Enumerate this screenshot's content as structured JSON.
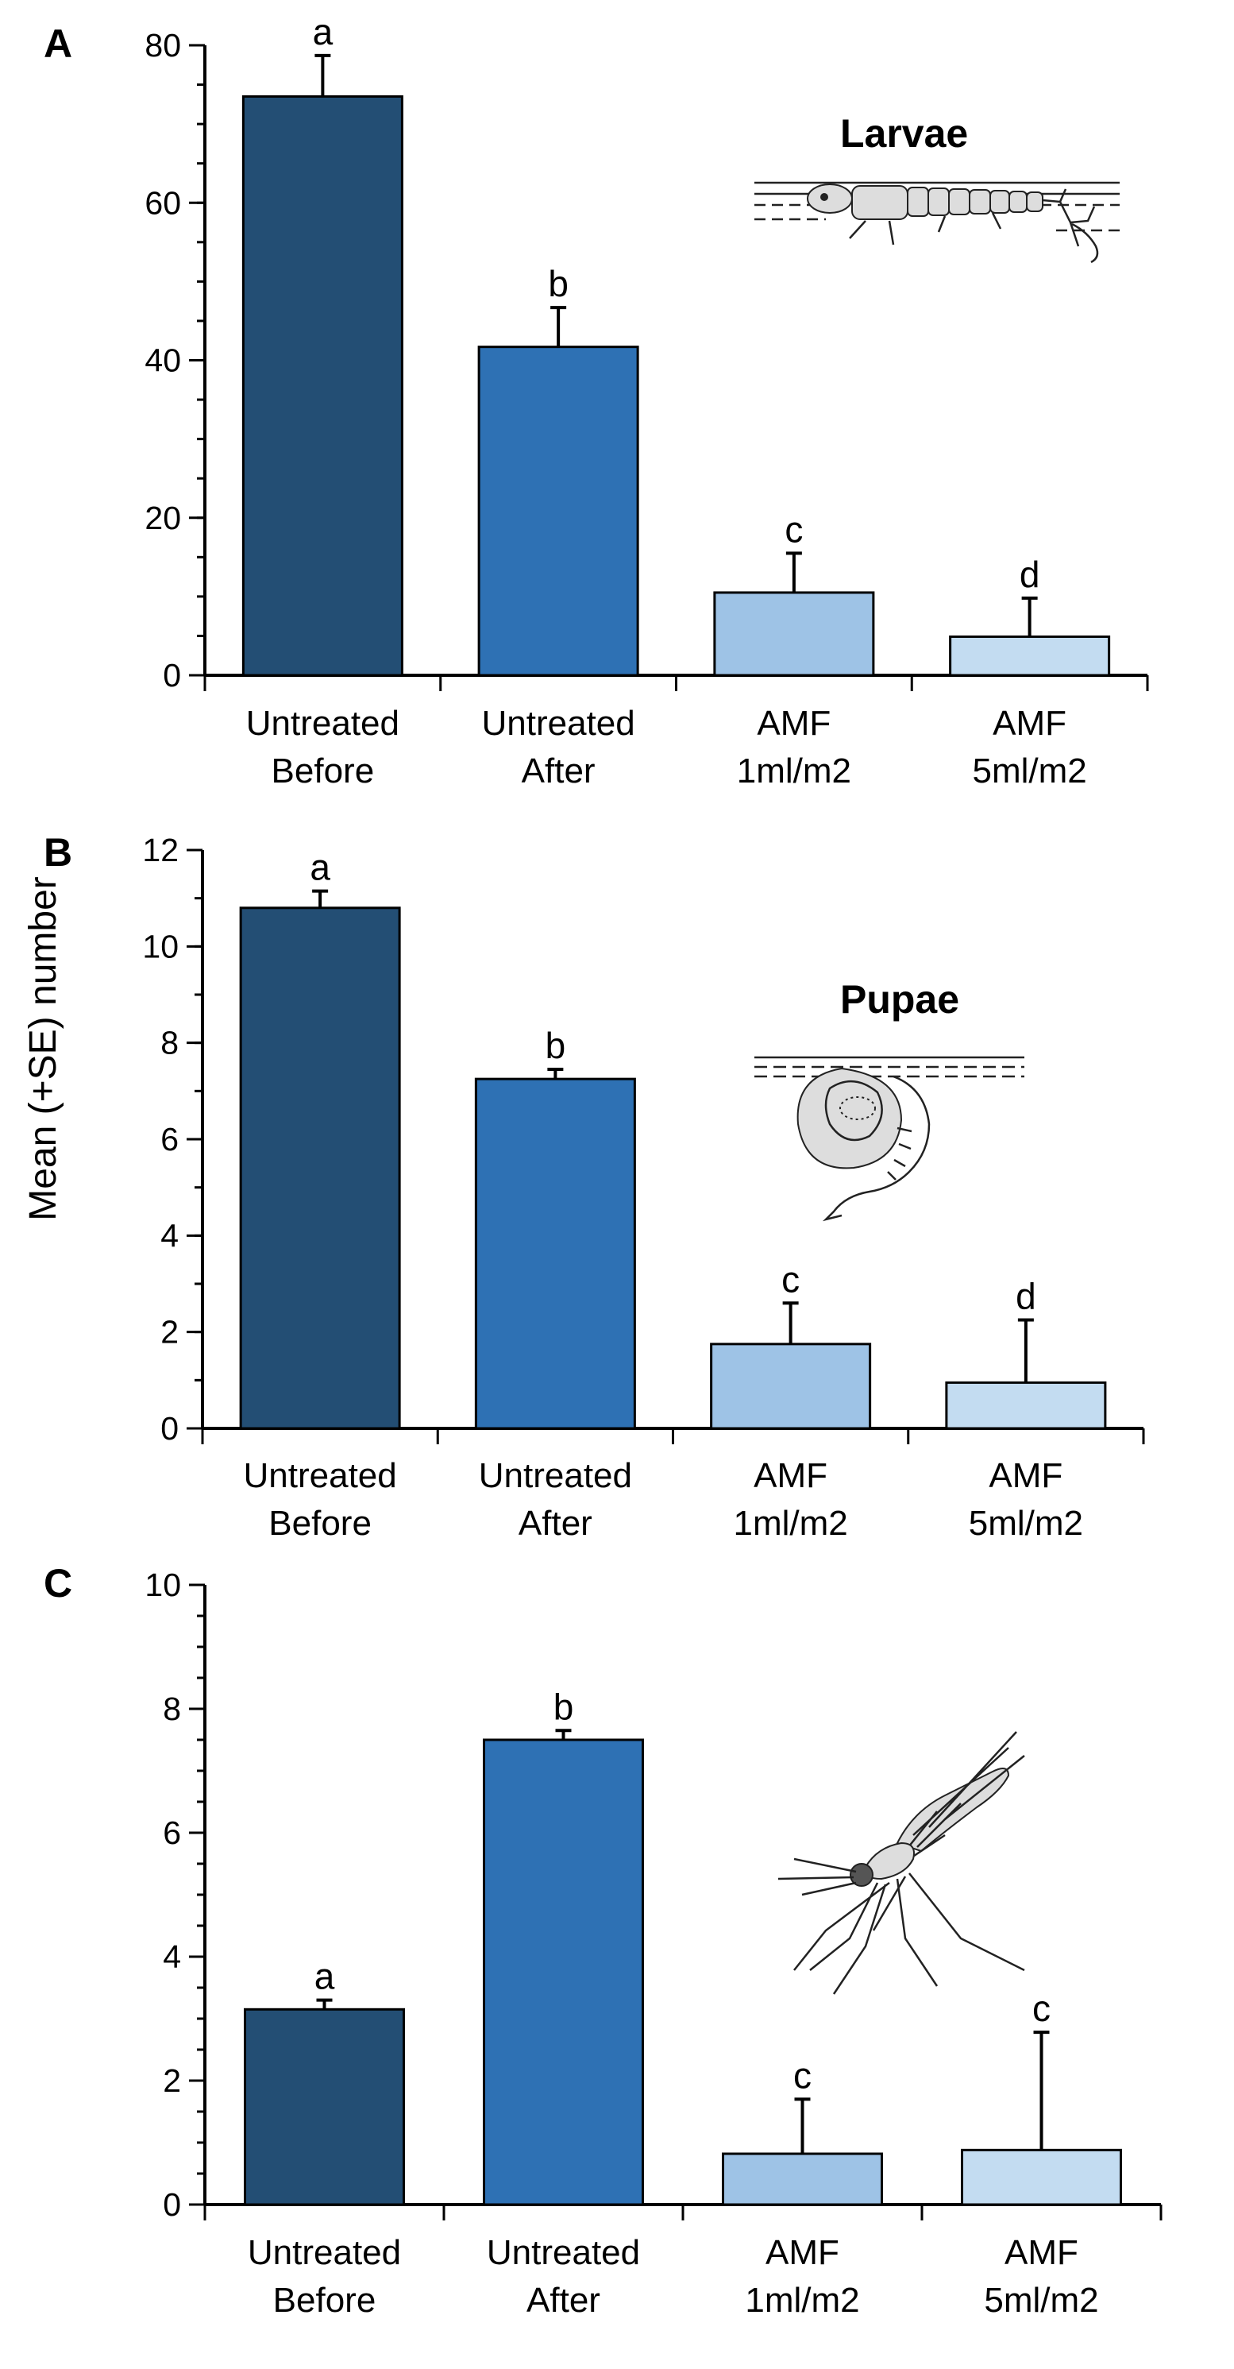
{
  "figure": {
    "ylabel": "Mean (+SE) number",
    "colors": [
      "#234e74",
      "#2e71b4",
      "#9ec3e6",
      "#c3dcf1"
    ]
  },
  "chart_data": [
    {
      "type": "bar",
      "panel": "A",
      "inset_title": "Larvae",
      "inset_icon": "larva-icon",
      "categories": [
        [
          "Untreated",
          "Before"
        ],
        [
          "Untreated",
          "After"
        ],
        [
          "AMF",
          "1ml/m2"
        ],
        [
          "AMF",
          "5ml/m2"
        ]
      ],
      "values": [
        73.5,
        41.7,
        10.5,
        4.9
      ],
      "errors": [
        5.2,
        5.0,
        5.0,
        4.9
      ],
      "significance": [
        "a",
        "b",
        "c",
        "d"
      ],
      "ylim": [
        0,
        80
      ],
      "yticks": [
        0,
        20,
        40,
        60,
        80
      ],
      "minor_step": 5
    },
    {
      "type": "bar",
      "panel": "B",
      "inset_title": "Pupae",
      "inset_icon": "pupa-icon",
      "categories": [
        [
          "Untreated",
          "Before"
        ],
        [
          "Untreated",
          "After"
        ],
        [
          "AMF",
          "1ml/m2"
        ],
        [
          "AMF",
          "5ml/m2"
        ]
      ],
      "values": [
        10.8,
        7.25,
        1.75,
        0.95
      ],
      "errors": [
        0.35,
        0.2,
        0.85,
        1.3
      ],
      "significance": [
        "a",
        "b",
        "c",
        "d"
      ],
      "ylim": [
        0,
        12
      ],
      "yticks": [
        0,
        2,
        4,
        6,
        8,
        10,
        12
      ],
      "minor_step": 1
    },
    {
      "type": "bar",
      "panel": "C",
      "inset_title": "",
      "inset_icon": "mosquito-icon",
      "categories": [
        [
          "Untreated",
          "Before"
        ],
        [
          "Untreated",
          "After"
        ],
        [
          "AMF",
          "1ml/m2"
        ],
        [
          "AMF",
          "5ml/m2"
        ]
      ],
      "values": [
        3.15,
        7.5,
        0.82,
        0.88
      ],
      "errors": [
        0.15,
        0.15,
        0.88,
        1.9
      ],
      "significance": [
        "a",
        "b",
        "c",
        "c"
      ],
      "ylim": [
        0,
        10
      ],
      "yticks": [
        0,
        2,
        4,
        6,
        8,
        10
      ],
      "minor_step": 0.5
    }
  ]
}
